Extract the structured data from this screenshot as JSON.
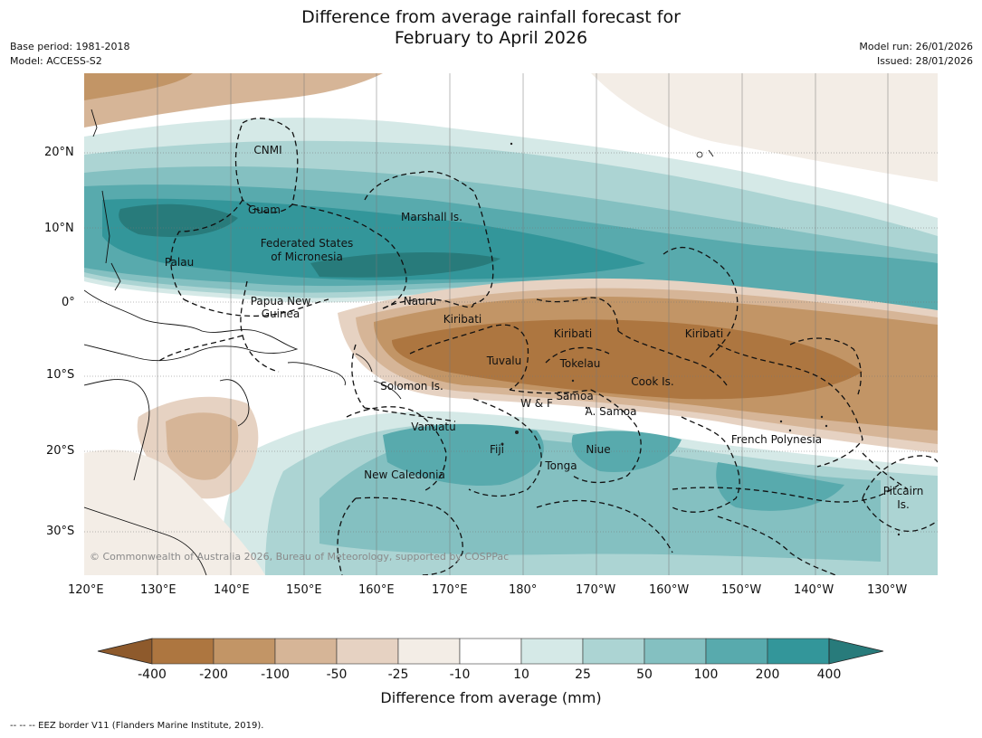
{
  "title": {
    "line1": "Difference from average rainfall forecast for",
    "line2": "February to April 2026"
  },
  "meta": {
    "base_period": "Base period: 1981-2018",
    "model": "Model: ACCESS-S2",
    "model_run": "Model run: 26/01/2026",
    "issued": "Issued: 28/01/2026"
  },
  "axes": {
    "lon_ticks": [
      "120°E",
      "130°E",
      "140°E",
      "150°E",
      "160°E",
      "170°E",
      "180°",
      "170°W",
      "160°W",
      "150°W",
      "140°W",
      "130°W"
    ],
    "lat_ticks": [
      "20°N",
      "10°N",
      "0°",
      "10°S",
      "20°S",
      "30°S"
    ]
  },
  "colorbar": {
    "title": "Difference from average (mm)",
    "tick_labels": [
      "-400",
      "-200",
      "-100",
      "-50",
      "-25",
      "-10",
      "10",
      "25",
      "50",
      "100",
      "200",
      "400"
    ],
    "colors": [
      "#8e5a2c",
      "#ad7640",
      "#c29566",
      "#d6b597",
      "#e6d2c2",
      "#f3ede6",
      "#ffffff",
      "#d5e9e7",
      "#acd4d3",
      "#84c0c1",
      "#58aaad",
      "#33969a",
      "#287b7b"
    ]
  },
  "labels": [
    {
      "text": "CNMI"
    },
    {
      "text": "Guam"
    },
    {
      "text": "Marshall Is."
    },
    {
      "text": "Federated States"
    },
    {
      "text": "of Micronesia"
    },
    {
      "text": "Palau"
    },
    {
      "text": "Papua New"
    },
    {
      "text": "Guinea"
    },
    {
      "text": "Nauru"
    },
    {
      "text": "Kiribati"
    },
    {
      "text": "Kiribati"
    },
    {
      "text": "Kiribati"
    },
    {
      "text": "Tuvalu"
    },
    {
      "text": "Tokelau"
    },
    {
      "text": "Cook Is."
    },
    {
      "text": "Solomon Is."
    },
    {
      "text": "Samoa"
    },
    {
      "text": "W & F"
    },
    {
      "text": "A. Samoa"
    },
    {
      "text": "Vanuatu"
    },
    {
      "text": "Fiji"
    },
    {
      "text": "Niue"
    },
    {
      "text": "Tonga"
    },
    {
      "text": "New Caledonia"
    },
    {
      "text": "French Polynesia"
    },
    {
      "text": "Pitcairn"
    },
    {
      "text": "Is."
    }
  ],
  "copyright": "© Commonwealth of Australia 2026, Bureau of Meteorology, supported by COSPPac",
  "footer": "--  --  -- EEZ border V11 (Flanders Marine Institute, 2019)."
}
